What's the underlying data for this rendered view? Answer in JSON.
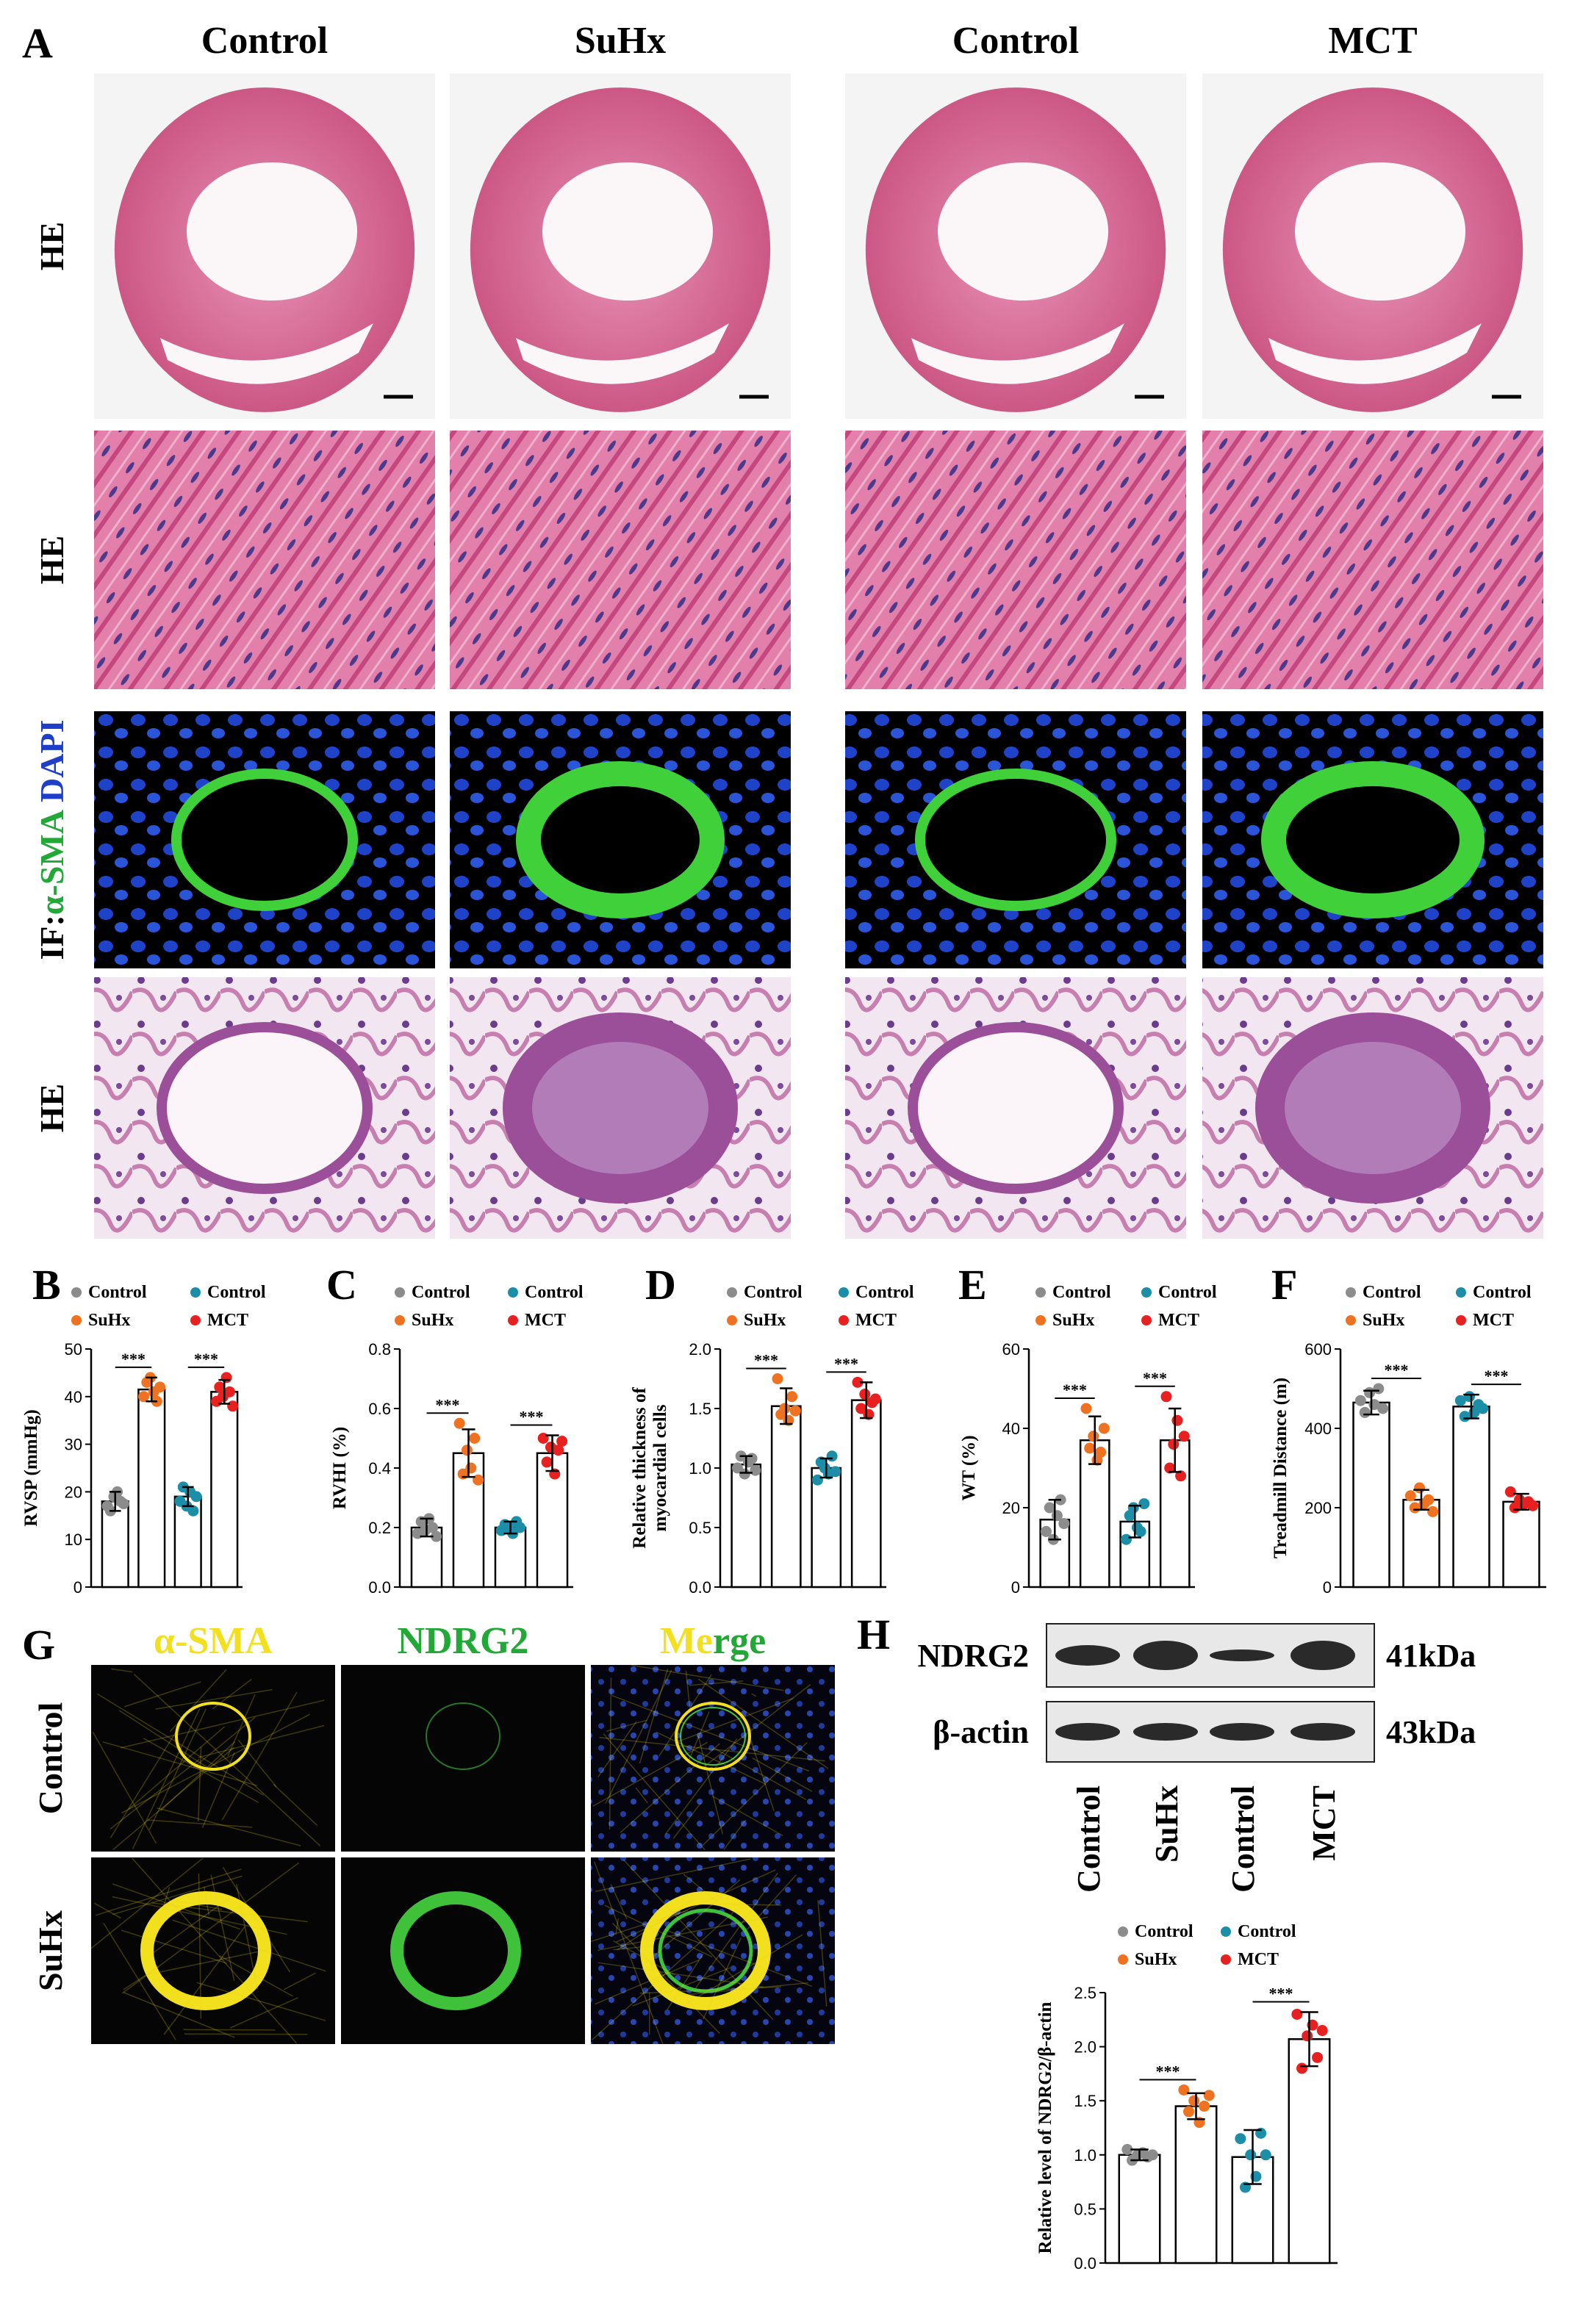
{
  "panel_a": {
    "label": "A",
    "columns": [
      "Control",
      "SuHx",
      "Control",
      "MCT"
    ],
    "rows": [
      {
        "parts": [
          "HE"
        ]
      },
      {
        "parts": [
          "HE"
        ]
      },
      {
        "parts": [
          "IF:",
          "α-SMA",
          "DAPI"
        ]
      },
      {
        "parts": [
          "HE"
        ]
      }
    ]
  },
  "panel_g": {
    "label": "G",
    "columns": [
      [
        "α-SMA"
      ],
      [
        "NDRG2"
      ],
      [
        "Me",
        "rge"
      ]
    ],
    "rows": [
      "Control",
      "SuHx"
    ]
  },
  "panel_h": {
    "label": "H",
    "proteins": [
      "NDRG2",
      "β-actin"
    ],
    "sizes": [
      "41kDa",
      "43kDa"
    ],
    "lanes": [
      "Control",
      "SuHx",
      "Control",
      "MCT"
    ]
  },
  "chart_data": [
    {
      "type": "bar",
      "label": "B",
      "ylabel": "RVSP (mmHg)",
      "ylim": [
        0,
        50
      ],
      "yticks": [
        0,
        10,
        20,
        30,
        40,
        50
      ],
      "annotations": [
        "***",
        "***"
      ],
      "series": [
        {
          "name": "Control",
          "color": "#8c8c8c",
          "value": 18,
          "error": 2,
          "points": [
            17,
            16,
            19,
            20,
            18,
            17.5
          ]
        },
        {
          "name": "SuHx",
          "color": "#ef7220",
          "value": 41.5,
          "error": 2.5,
          "points": [
            40,
            43,
            44,
            41,
            39,
            42
          ]
        },
        {
          "name": "Control",
          "color": "#1c8ea8",
          "value": 19,
          "error": 2,
          "points": [
            18,
            21,
            17,
            20,
            16,
            19
          ]
        },
        {
          "name": "MCT",
          "color": "#e82020",
          "value": 41,
          "error": 2.5,
          "points": [
            39,
            42,
            40,
            44,
            41,
            38
          ]
        }
      ]
    },
    {
      "type": "bar",
      "label": "C",
      "ylabel": "RVHI (%)",
      "ylim": [
        0,
        0.8
      ],
      "yticks": [
        {
          "value": 0,
          "label": "0.0"
        },
        0.2,
        0.4,
        0.6,
        0.8
      ],
      "annotations": [
        "***",
        "***"
      ],
      "series": [
        {
          "name": "Control",
          "color": "#8c8c8c",
          "value": 0.2,
          "error": 0.03,
          "points": [
            0.18,
            0.22,
            0.19,
            0.23,
            0.2,
            0.17
          ]
        },
        {
          "name": "SuHx",
          "color": "#ef7220",
          "value": 0.45,
          "error": 0.08,
          "points": [
            0.55,
            0.38,
            0.46,
            0.4,
            0.5,
            0.36
          ]
        },
        {
          "name": "Control",
          "color": "#1c8ea8",
          "value": 0.2,
          "error": 0.02,
          "points": [
            0.19,
            0.21,
            0.2,
            0.18,
            0.22,
            0.2
          ]
        },
        {
          "name": "MCT",
          "color": "#e82020",
          "value": 0.45,
          "error": 0.06,
          "points": [
            0.5,
            0.42,
            0.47,
            0.38,
            0.46,
            0.49
          ]
        }
      ]
    },
    {
      "type": "bar",
      "label": "D",
      "ylabel": [
        "Relative thickness of",
        "myocardial cells"
      ],
      "ylim": [
        0,
        2
      ],
      "yticks": [
        {
          "value": 0,
          "label": "0.0"
        },
        0.5,
        {
          "value": 1,
          "label": "1.0"
        },
        1.5,
        {
          "value": 2,
          "label": "2.0"
        }
      ],
      "annotations": [
        "***",
        "***"
      ],
      "series": [
        {
          "name": "Control",
          "color": "#8c8c8c",
          "value": 1.03,
          "error": 0.07,
          "points": [
            1.0,
            1.1,
            0.95,
            1.05,
            1.08,
            0.98
          ]
        },
        {
          "name": "SuHx",
          "color": "#ef7220",
          "value": 1.52,
          "error": 0.15,
          "points": [
            1.75,
            1.45,
            1.5,
            1.4,
            1.6,
            1.48
          ]
        },
        {
          "name": "Control",
          "color": "#1c8ea8",
          "value": 1.0,
          "error": 0.08,
          "points": [
            0.9,
            1.05,
            1.0,
            0.95,
            1.1,
            0.97
          ]
        },
        {
          "name": "MCT",
          "color": "#e82020",
          "value": 1.57,
          "error": 0.15,
          "points": [
            1.72,
            1.5,
            1.62,
            1.45,
            1.55,
            1.58
          ]
        }
      ]
    },
    {
      "type": "bar",
      "label": "E",
      "ylabel": "WT (%)",
      "ylim": [
        0,
        60
      ],
      "yticks": [
        0,
        20,
        40,
        60
      ],
      "annotations": [
        "***",
        "***"
      ],
      "series": [
        {
          "name": "Control",
          "color": "#8c8c8c",
          "value": 17,
          "error": 5,
          "points": [
            14,
            20,
            12,
            18,
            22,
            16
          ]
        },
        {
          "name": "SuHx",
          "color": "#ef7220",
          "value": 37,
          "error": 6,
          "points": [
            45,
            35,
            38,
            32,
            34,
            40
          ]
        },
        {
          "name": "Control",
          "color": "#1c8ea8",
          "value": 16.5,
          "error": 4,
          "points": [
            12,
            18,
            20,
            15,
            14,
            21
          ]
        },
        {
          "name": "MCT",
          "color": "#e82020",
          "value": 37,
          "error": 8,
          "points": [
            48,
            30,
            36,
            42,
            28,
            38
          ]
        }
      ]
    },
    {
      "type": "bar",
      "label": "F",
      "ylabel": "Treadmill Distance (m)",
      "ylim": [
        0,
        600
      ],
      "yticks": [
        0,
        200,
        400,
        600
      ],
      "annotations": [
        "***",
        "***"
      ],
      "series": [
        {
          "name": "Control",
          "color": "#8c8c8c",
          "value": 465,
          "error": 30,
          "points": [
            470,
            440,
            490,
            460,
            500,
            450
          ]
        },
        {
          "name": "SuHx",
          "color": "#ef7220",
          "value": 220,
          "error": 25,
          "points": [
            230,
            200,
            250,
            210,
            220,
            190
          ]
        },
        {
          "name": "Control",
          "color": "#1c8ea8",
          "value": 455,
          "error": 30,
          "points": [
            470,
            430,
            480,
            440,
            460,
            450
          ]
        },
        {
          "name": "MCT",
          "color": "#e82020",
          "value": 215,
          "error": 20,
          "points": [
            240,
            200,
            220,
            210,
            215,
            205
          ]
        }
      ]
    },
    {
      "type": "bar",
      "ylabel": "Relative level of NDRG2/β-actin",
      "ylim": [
        0,
        2.5
      ],
      "yticks": [
        {
          "value": 0,
          "label": "0.0"
        },
        0.5,
        {
          "value": 1,
          "label": "1.0"
        },
        1.5,
        {
          "value": 2,
          "label": "2.0"
        },
        2.5
      ],
      "annotations": [
        "***",
        "***"
      ],
      "series": [
        {
          "name": "Control",
          "color": "#8c8c8c",
          "value": 1.0,
          "error": 0.05,
          "points": [
            1.05,
            0.95,
            1.0,
            1.02,
            0.98,
            1.0
          ]
        },
        {
          "name": "SuHx",
          "color": "#ef7220",
          "value": 1.45,
          "error": 0.12,
          "points": [
            1.6,
            1.4,
            1.5,
            1.3,
            1.45,
            1.55
          ]
        },
        {
          "name": "Control",
          "color": "#1c8ea8",
          "value": 0.98,
          "error": 0.25,
          "points": [
            1.15,
            0.7,
            1.0,
            0.8,
            1.2,
            1.0
          ]
        },
        {
          "name": "MCT",
          "color": "#e82020",
          "value": 2.07,
          "error": 0.25,
          "points": [
            2.3,
            1.8,
            2.1,
            2.2,
            1.9,
            2.15
          ]
        }
      ]
    }
  ]
}
